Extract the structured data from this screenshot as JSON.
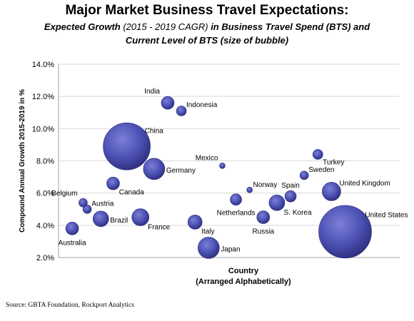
{
  "title": "Major Market Business Travel Expectations:",
  "subtitle": {
    "part1": "Expected Growth",
    "part2": " (2015 - 2019 CAGR) ",
    "part3": "in Business Travel Spend (BTS) and",
    "line2": "Current Level of BTS (size of bubble)"
  },
  "source": "Source: GBTA Foundation, Rockport Analytics",
  "colors": {
    "bubble_light": "#7b7fd6",
    "bubble_mid": "#4e52b5",
    "bubble_dark": "#2a2d7a",
    "grid": "#d9d9d9",
    "axis": "#a6a6a6"
  },
  "chart_data": {
    "type": "bubble",
    "xlabel": "Country",
    "xlabel_sub": "(Arranged Alphabetically)",
    "ylabel": "Compound Annual Growth 2015-2019 in %",
    "ylim": [
      2.0,
      14.0
    ],
    "yticks": [
      "2.0%",
      "4.0%",
      "6.0%",
      "8.0%",
      "10.0%",
      "12.0%",
      "14.0%"
    ],
    "xlim": [
      0,
      25
    ],
    "grid": true,
    "points": [
      {
        "label": "Australia",
        "x": 1,
        "y": 3.8,
        "size": 9,
        "label_pos": "below"
      },
      {
        "label": "Austria",
        "x": 2.1,
        "y": 5.0,
        "size": 6,
        "label_pos": "right-up"
      },
      {
        "label": "Belgium",
        "x": 1.8,
        "y": 5.4,
        "size": 6,
        "label_pos": "above-left"
      },
      {
        "label": "Brazil",
        "x": 3.1,
        "y": 4.4,
        "size": 11,
        "label_pos": "right"
      },
      {
        "label": "Canada",
        "x": 4.0,
        "y": 6.6,
        "size": 9,
        "label_pos": "right-down"
      },
      {
        "label": "China",
        "x": 5.0,
        "y": 8.9,
        "size": 33,
        "label_pos": "right-up"
      },
      {
        "label": "France",
        "x": 6.0,
        "y": 4.5,
        "size": 12,
        "label_pos": "right-down"
      },
      {
        "label": "Germany",
        "x": 7.0,
        "y": 7.5,
        "size": 15,
        "label_pos": "right"
      },
      {
        "label": "India",
        "x": 8.0,
        "y": 11.6,
        "size": 9,
        "label_pos": "above-left"
      },
      {
        "label": "Indonesia",
        "x": 9.0,
        "y": 11.1,
        "size": 7,
        "label_pos": "right-up"
      },
      {
        "label": "Italy",
        "x": 10.0,
        "y": 4.2,
        "size": 10,
        "label_pos": "right-down"
      },
      {
        "label": "Japan",
        "x": 11.0,
        "y": 2.6,
        "size": 15,
        "label_pos": "right"
      },
      {
        "label": "Mexico",
        "x": 12.0,
        "y": 7.7,
        "size": 4,
        "label_pos": "above-left"
      },
      {
        "label": "Netherlands",
        "x": 13.0,
        "y": 5.6,
        "size": 8,
        "label_pos": "below"
      },
      {
        "label": "Norway",
        "x": 14.0,
        "y": 6.2,
        "size": 4,
        "label_pos": "right-up"
      },
      {
        "label": "Russia",
        "x": 15.0,
        "y": 4.5,
        "size": 9,
        "label_pos": "below"
      },
      {
        "label": "S. Korea",
        "x": 16.0,
        "y": 5.4,
        "size": 11,
        "label_pos": "right-down"
      },
      {
        "label": "Spain",
        "x": 17.0,
        "y": 5.8,
        "size": 8,
        "label_pos": "above"
      },
      {
        "label": "Sweden",
        "x": 18.0,
        "y": 7.1,
        "size": 6,
        "label_pos": "right-up"
      },
      {
        "label": "Turkey",
        "x": 19.0,
        "y": 8.4,
        "size": 7,
        "label_pos": "right-down"
      },
      {
        "label": "United Kingdom",
        "x": 20.0,
        "y": 6.1,
        "size": 13,
        "label_pos": "right-up"
      },
      {
        "label": "United States",
        "x": 21.0,
        "y": 3.6,
        "size": 37,
        "label_pos": "right-up"
      }
    ]
  }
}
